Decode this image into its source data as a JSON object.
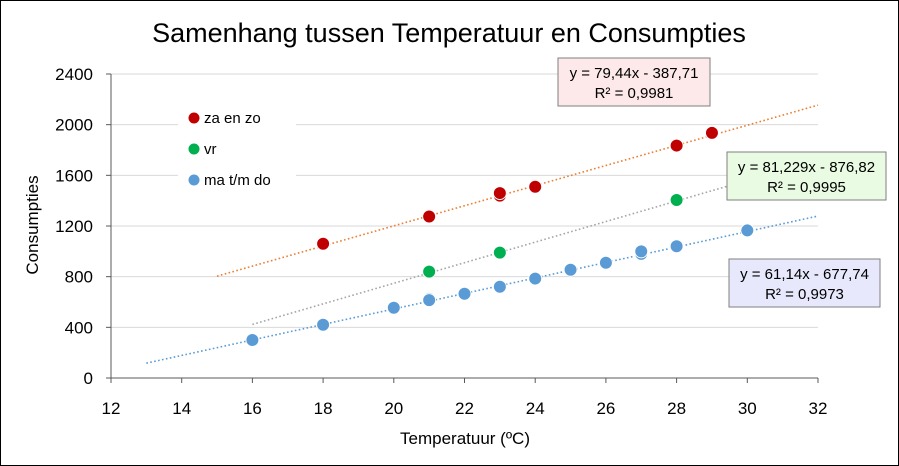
{
  "chart_data": {
    "type": "scatter",
    "title": "Samenhang tussen Temperatuur en Consumpties",
    "xlabel": "Temperatuur (ºC)",
    "ylabel": "Consumpties",
    "xlim": [
      12,
      32
    ],
    "ylim": [
      0,
      2400
    ],
    "xticks": [
      "12",
      "14",
      "16",
      "18",
      "20",
      "22",
      "24",
      "26",
      "28",
      "30",
      "32"
    ],
    "yticks": [
      "0",
      "400",
      "800",
      "1200",
      "1600",
      "2000",
      "2400"
    ],
    "grid": true,
    "legend_position": "top-left",
    "series": [
      {
        "name": "za en zo",
        "color": "#c00000",
        "x": [
          18,
          21,
          23,
          23,
          24,
          28,
          29
        ],
        "y": [
          1060,
          1275,
          1440,
          1460,
          1510,
          1835,
          1935
        ],
        "trendline": {
          "style": "dotted",
          "color": "#ed7d31",
          "x_range": [
            15,
            32
          ],
          "equation": "y = 79,44x - 387,71",
          "r2": "R² = 0,9981",
          "label_bg": "#fde9e9"
        }
      },
      {
        "name": "vr",
        "color": "#00b050",
        "x": [
          21,
          23,
          28
        ],
        "y": [
          840,
          990,
          1405
        ],
        "trendline": {
          "style": "dotted",
          "color": "#a6a6a6",
          "x_range": [
            16,
            32
          ],
          "equation": "y = 81,229x - 876,82",
          "r2": "R² = 0,9995",
          "label_bg": "#e9fbe2"
        }
      },
      {
        "name": "ma t/m do",
        "color": "#5b9bd5",
        "x": [
          16,
          18,
          20,
          21,
          21,
          22,
          23,
          24,
          25,
          26,
          27,
          27,
          28,
          30
        ],
        "y": [
          300,
          420,
          555,
          625,
          615,
          665,
          720,
          785,
          855,
          910,
          980,
          1000,
          1040,
          1165
        ],
        "trendline": {
          "style": "dotted",
          "color": "#5b9bd5",
          "x_range": [
            13,
            32
          ],
          "equation": "y = 61,14x - 677,74",
          "r2": "R² = 0,9973",
          "label_bg": "#e8e8fd"
        }
      }
    ]
  }
}
